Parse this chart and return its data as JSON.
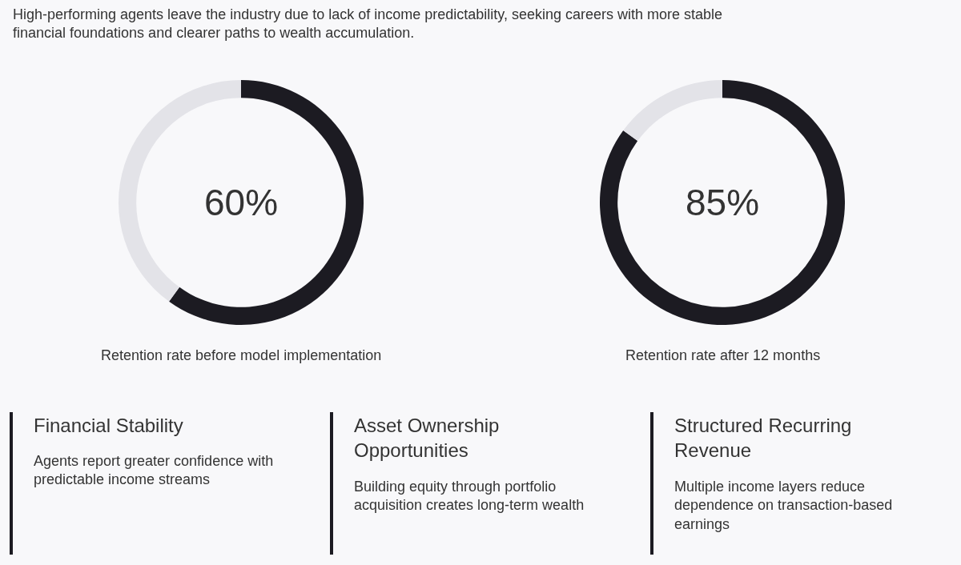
{
  "chart_data": [
    {
      "type": "other",
      "annotations": [
        "High-performing agents leave the industry due to lack of income predictability, seeking careers with more stable financial foundations and clearer paths to wealth accumulation."
      ]
    },
    {
      "type": "donut",
      "categories": [
        null,
        null
      ],
      "values": [
        60,
        40
      ],
      "colors": [
        "#1c1b22",
        "#e3e3e8"
      ],
      "annotations": [
        "60%",
        "Retention rate before model implementation"
      ]
    },
    {
      "type": "donut",
      "categories": [
        null,
        null
      ],
      "values": [
        85,
        15
      ],
      "colors": [
        "#1c1b22",
        "#e3e3e8"
      ],
      "annotations": [
        "85%",
        "Retention rate after 12 months"
      ]
    },
    {
      "type": "other",
      "title": "Financial Stability",
      "annotations": [
        "Agents report greater confidence with predictable income streams"
      ]
    },
    {
      "type": "other",
      "title": "Asset Ownership Opportunities",
      "annotations": [
        "Building equity through portfolio acquisition creates long-term wealth"
      ]
    },
    {
      "type": "other",
      "title": "Structured Recurring Revenue",
      "annotations": [
        "Multiple income layers reduce dependence on transaction-based earnings"
      ]
    }
  ]
}
